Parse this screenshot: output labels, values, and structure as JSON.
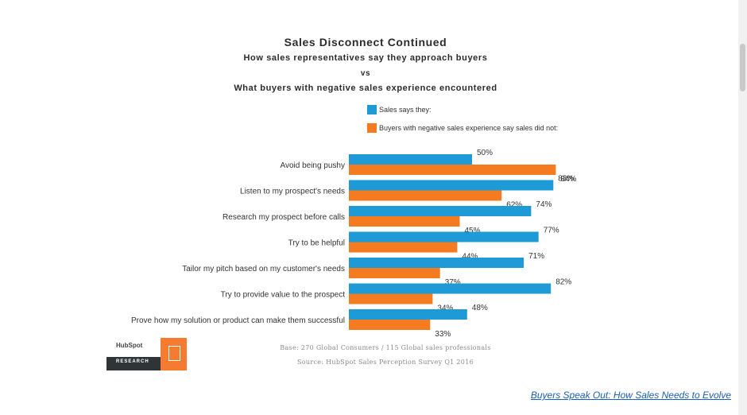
{
  "chart_data": {
    "type": "bar",
    "orientation": "horizontal",
    "title": "Sales Disconnect Continued",
    "subtitle_lines": [
      "How sales representatives say they approach buyers",
      "vs",
      "What buyers with negative sales experience encountered"
    ],
    "categories": [
      "Avoid being pushy",
      "Listen to my prospect's needs",
      "Research my prospect before calls",
      "Try to be helpful",
      "Tailor my pitch based on my customer's needs",
      "Try to provide value to the prospect",
      "Prove how my solution or product can make them successful"
    ],
    "series": [
      {
        "name": "Sales says they:",
        "color": "#1e9ad6",
        "values": [
          50,
          83,
          74,
          77,
          71,
          82,
          48
        ]
      },
      {
        "name": "Buyers with negative sales experience say sales did not:",
        "color": "#f47b20",
        "values": [
          84,
          62,
          45,
          44,
          37,
          34,
          33
        ]
      }
    ],
    "value_suffix": "%",
    "xlim": [
      0,
      100
    ],
    "xlabel": "",
    "ylabel": "",
    "grid": false,
    "legend_placement": "top"
  },
  "logo": {
    "brand": "HubSpot",
    "tag": "RESEARCH"
  },
  "source": {
    "base": "Base: 270 Global Consumers / 115 Global sales professionals",
    "credit": "Source: HubSpot Sales Perception Survey Q1 2016"
  },
  "link": {
    "text": "Buyers Speak Out: How Sales Needs to Evolve"
  }
}
